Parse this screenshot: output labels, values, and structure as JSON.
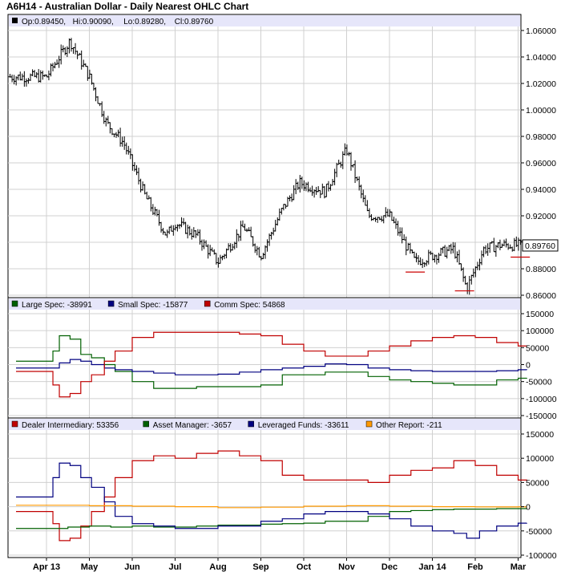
{
  "title": "A6H14 - Australian Dollar - Daily Nearest OHLC Chart",
  "colors": {
    "legend_band": "#e6e6fa",
    "grid": "#d0d0d0",
    "frame": "#000000",
    "price_bars": "#000000",
    "low_marker": "#cc0000",
    "red": "#c00000",
    "green": "#006000",
    "blue": "#000080",
    "orange": "#ff9900"
  },
  "x_axis": {
    "labels": [
      "Apr 13",
      "May",
      "Jun",
      "Jul",
      "Aug",
      "Sep",
      "Oct",
      "Nov",
      "Dec",
      "Jan 14",
      "Feb",
      "Mar"
    ]
  },
  "chart_data": [
    {
      "type": "ohlc",
      "legend": {
        "op": "Op:0.89450,",
        "hi": "Hi:0.90090,",
        "lo": "Lo:0.89280,",
        "cl": "Cl:0.89760"
      },
      "ylim": [
        0.86,
        1.06
      ],
      "y_ticks": [
        "1.06000",
        "1.04000",
        "1.02000",
        "1.00000",
        "0.98000",
        "0.96000",
        "0.94000",
        "0.92000",
        "0.90000",
        "0.88000",
        "0.86000"
      ],
      "last_price_label": "0.89760",
      "last_price": 0.8976,
      "anchors_x_month_index": [
        0,
        0.3,
        0.55,
        1,
        1.4,
        1.8,
        2.3,
        2.8,
        3,
        3.5,
        4,
        4.6,
        5,
        5.5,
        5.9,
        6.5,
        7,
        7.5,
        8,
        8.6,
        9,
        9.5,
        9.8,
        10.2,
        10.6,
        11.1
      ],
      "anchors_price": [
        1.025,
        1.04,
        1.052,
        1.025,
        0.99,
        0.975,
        0.935,
        0.905,
        0.915,
        0.905,
        0.885,
        0.912,
        0.89,
        0.925,
        0.945,
        0.938,
        0.97,
        0.92,
        0.92,
        0.885,
        0.89,
        0.895,
        0.865,
        0.895,
        0.898,
        0.8976
      ],
      "low_markers": [
        {
          "x_month_index": 8.6,
          "price": 0.8775
        },
        {
          "x_month_index": 9.75,
          "price": 0.8633
        },
        {
          "x_month_index": 11.05,
          "price": 0.8888
        }
      ]
    },
    {
      "type": "step",
      "ylim": [
        -150000,
        150000
      ],
      "y_ticks": [
        "150000",
        "100000",
        "50000",
        "0",
        "-50000",
        "-100000",
        "-150000"
      ],
      "series": [
        {
          "name": "Large Spec: -38991",
          "color": "#006000",
          "x_month_index": [
            0,
            0.15,
            0.3,
            0.55,
            0.8,
            1.05,
            1.35,
            1.6,
            2,
            2.5,
            3,
            3.5,
            4,
            4.5,
            5,
            5.5,
            6,
            6.5,
            7,
            7.5,
            8,
            8.5,
            9,
            9.5,
            10,
            10.5,
            11,
            11.2
          ],
          "values": [
            10000,
            40000,
            85000,
            75000,
            30000,
            20000,
            0,
            -20000,
            -50000,
            -70000,
            -70000,
            -65000,
            -65000,
            -65000,
            -60000,
            -30000,
            -30000,
            -22000,
            -22000,
            -35000,
            -45000,
            -50000,
            -55000,
            -60000,
            -60000,
            -45000,
            -40000,
            -38991
          ]
        },
        {
          "name": "Small Spec: -15877",
          "color": "#000080",
          "x_month_index": [
            0,
            0.3,
            0.55,
            0.8,
            1.05,
            1.35,
            1.6,
            2,
            2.5,
            3,
            3.5,
            4,
            4.5,
            5,
            5.5,
            6,
            6.5,
            7,
            7.5,
            8,
            8.5,
            9,
            9.5,
            10,
            10.5,
            11,
            11.2
          ],
          "values": [
            -10000,
            5000,
            15000,
            10000,
            0,
            -10000,
            -15000,
            -20000,
            -25000,
            -30000,
            -30000,
            -28000,
            -22000,
            -15000,
            -10000,
            -5000,
            2000,
            0,
            -10000,
            -15000,
            -18000,
            -20000,
            -20000,
            -20000,
            -18000,
            -15000,
            -15877
          ]
        },
        {
          "name": "Comm Spec: 54868",
          "color": "#c00000",
          "x_month_index": [
            0,
            0.15,
            0.3,
            0.55,
            0.8,
            1.05,
            1.35,
            1.6,
            2,
            2.5,
            3,
            3.5,
            4,
            4.5,
            5,
            5.5,
            6,
            6.5,
            7,
            7.5,
            8,
            8.5,
            9,
            9.5,
            10,
            10.5,
            11,
            11.2
          ],
          "values": [
            -20000,
            -60000,
            -95000,
            -85000,
            -50000,
            -30000,
            10000,
            40000,
            80000,
            95000,
            95000,
            95000,
            95000,
            90000,
            85000,
            60000,
            40000,
            25000,
            25000,
            40000,
            55000,
            70000,
            80000,
            85000,
            80000,
            65000,
            55000,
            54868
          ]
        }
      ]
    },
    {
      "type": "step",
      "ylim": [
        -100000,
        150000
      ],
      "y_ticks": [
        "150000",
        "100000",
        "50000",
        "0",
        "-50000",
        "-100000"
      ],
      "series": [
        {
          "name": "Dealer Intermediary: 53356",
          "color": "#c00000",
          "x_month_index": [
            0,
            0.15,
            0.3,
            0.55,
            0.8,
            1.05,
            1.35,
            1.6,
            2,
            2.5,
            3,
            3.5,
            4,
            4.5,
            5,
            5.5,
            6,
            6.5,
            7,
            7.5,
            8,
            8.5,
            9,
            9.5,
            10,
            10.5,
            11,
            11.2
          ],
          "values": [
            -10000,
            -35000,
            -70000,
            -65000,
            -40000,
            -10000,
            20000,
            60000,
            95000,
            105000,
            100000,
            110000,
            115000,
            105000,
            95000,
            65000,
            55000,
            55000,
            55000,
            50000,
            65000,
            75000,
            80000,
            95000,
            85000,
            65000,
            55000,
            53356
          ]
        },
        {
          "name": "Asset Manager: -3657",
          "color": "#006000",
          "x_month_index": [
            0,
            0.5,
            1,
            1.5,
            2,
            2.5,
            3,
            3.5,
            4,
            4.5,
            5,
            5.5,
            6,
            6.5,
            7,
            7.5,
            8,
            8.5,
            9,
            9.5,
            10,
            10.5,
            11,
            11.2
          ],
          "values": [
            -45000,
            -42000,
            -40000,
            -42000,
            -40000,
            -42000,
            -42000,
            -40000,
            -38000,
            -38000,
            -36000,
            -35000,
            -34000,
            -30000,
            -30000,
            -20000,
            -10000,
            -8000,
            -6000,
            -5000,
            -5000,
            -4000,
            -4000,
            -3657
          ]
        },
        {
          "name": "Leveraged Funds: -33611",
          "color": "#000080",
          "x_month_index": [
            0,
            0.15,
            0.3,
            0.55,
            0.8,
            1.05,
            1.35,
            1.6,
            2,
            2.5,
            3,
            3.5,
            4,
            4.5,
            5,
            5.5,
            6,
            6.5,
            7,
            7.5,
            8,
            8.5,
            9,
            9.5,
            9.8,
            10.1,
            10.5,
            11,
            11.2
          ],
          "values": [
            20000,
            60000,
            90000,
            85000,
            60000,
            40000,
            10000,
            -20000,
            -35000,
            -40000,
            -45000,
            -45000,
            -40000,
            -40000,
            -30000,
            -25000,
            -15000,
            -10000,
            -10000,
            -15000,
            -25000,
            -40000,
            -50000,
            -55000,
            -65000,
            -50000,
            -40000,
            -34000,
            -33611
          ]
        },
        {
          "name": "Other Report: -211",
          "color": "#ff9900",
          "x_month_index": [
            0,
            1,
            2,
            3,
            4,
            5,
            6,
            7,
            8,
            9,
            10,
            11,
            11.2
          ],
          "values": [
            3000,
            2000,
            1000,
            0,
            -2000,
            -1000,
            1000,
            2000,
            1000,
            0,
            -500,
            -300,
            -211
          ]
        }
      ]
    }
  ]
}
